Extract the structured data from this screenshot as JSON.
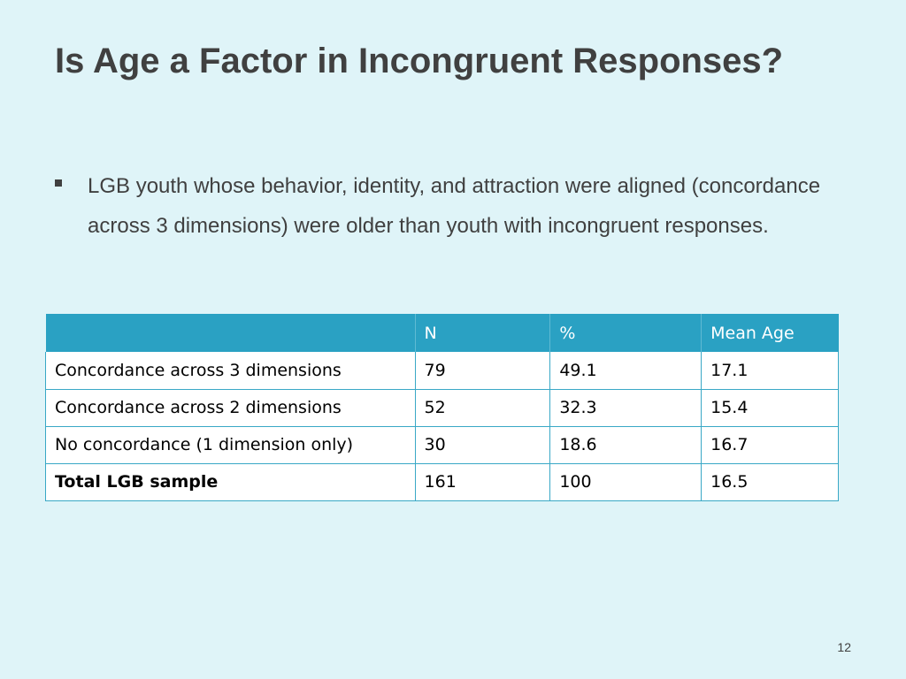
{
  "slide": {
    "title": "Is Age a Factor in Incongruent Responses?",
    "page_number": "12"
  },
  "bullets": [
    "LGB youth whose behavior, identity, and attraction were aligned (concordance across 3 dimensions) were older than youth with incongruent responses."
  ],
  "table": {
    "headers": [
      "",
      "N",
      "%",
      "Mean Age"
    ],
    "rows": [
      [
        "Concordance across 3 dimensions",
        "79",
        "49.1",
        "17.1"
      ],
      [
        "Concordance across 2 dimensions",
        "52",
        "32.3",
        "15.4"
      ],
      [
        "No concordance (1 dimension only)",
        "30",
        "18.6",
        "16.7"
      ],
      [
        "Total LGB sample",
        "161",
        "100",
        "16.5"
      ]
    ]
  },
  "colors": {
    "background": "#dff4f8",
    "header_fill": "#2aa1c3",
    "border": "#39a8c6",
    "text": "#404040"
  }
}
